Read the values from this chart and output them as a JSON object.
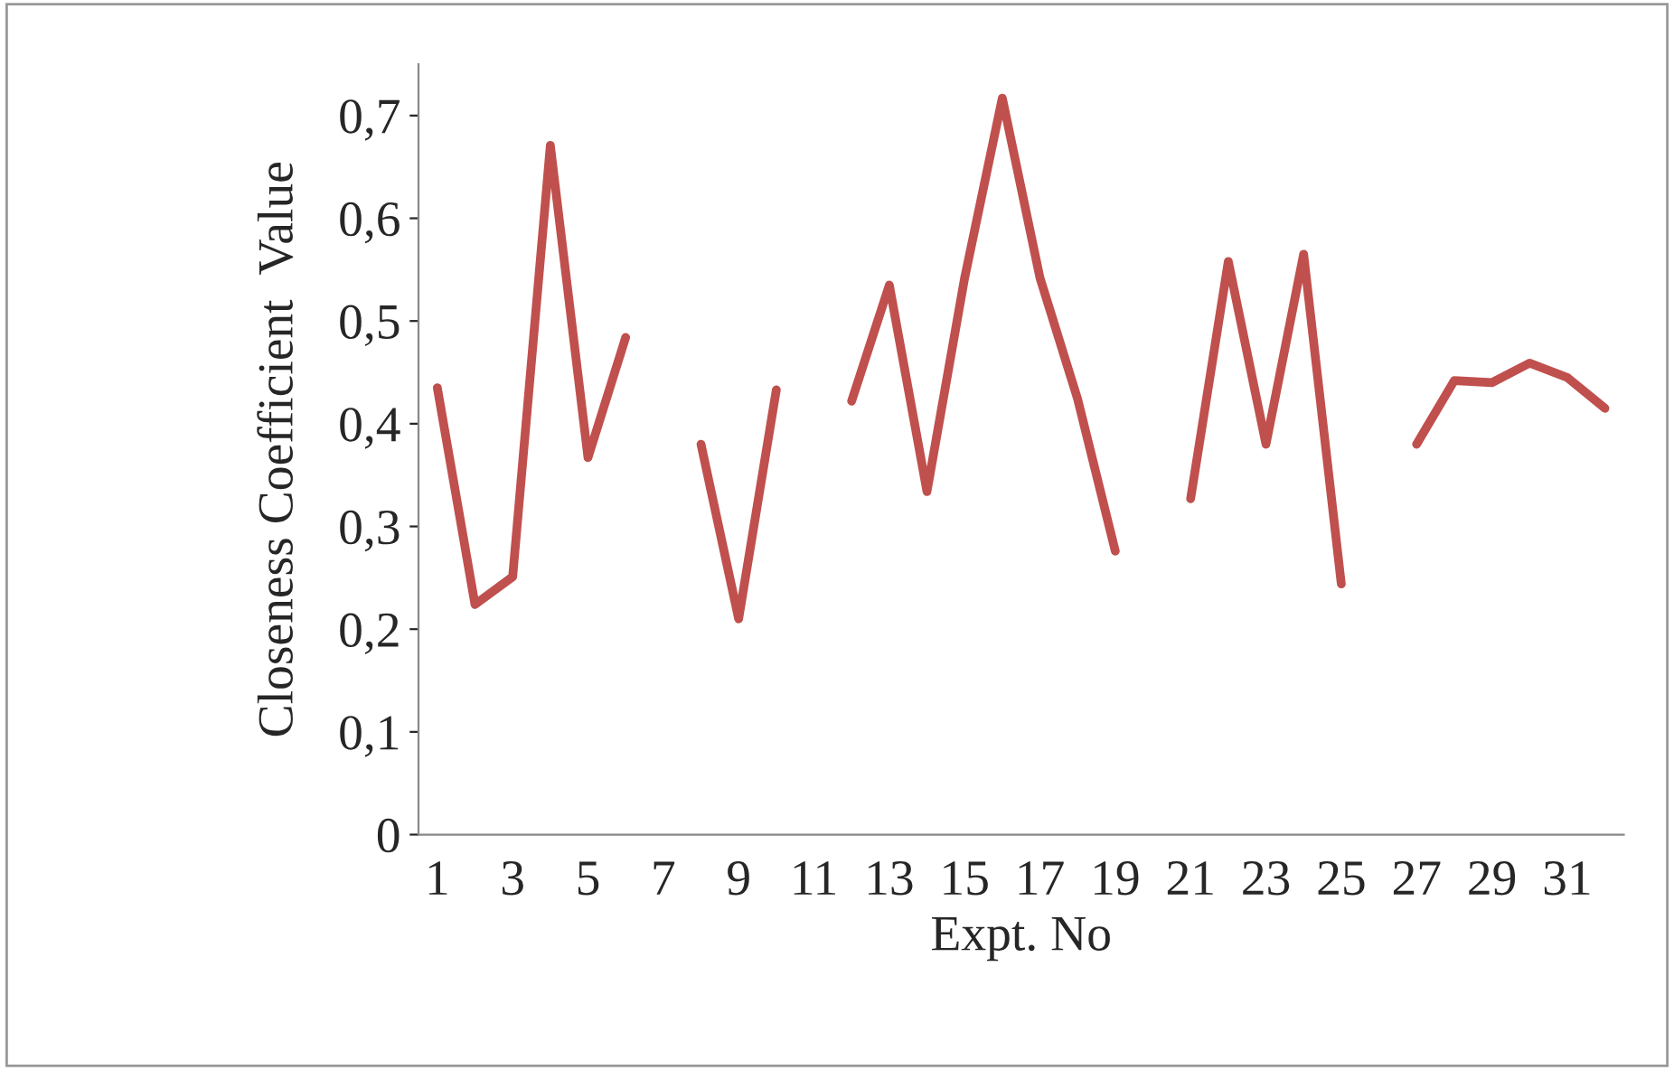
{
  "chart_data": {
    "type": "line",
    "xlabel": "Expt. No",
    "ylabel": "Closeness Coefficient  Value",
    "categories": [
      "1",
      null,
      "3",
      null,
      "5",
      null,
      "7",
      null,
      "9",
      null,
      "11",
      null,
      "13",
      null,
      "15",
      null,
      "17",
      null,
      "19",
      null,
      "21",
      null,
      "23",
      null,
      "25",
      null,
      "27",
      null,
      "29",
      null,
      "31",
      null
    ],
    "series": [
      {
        "color": "#c0504d",
        "values": [
          0.435,
          0.224,
          0.251,
          0.671,
          0.367,
          0.484,
          null,
          0.38,
          0.21,
          0.433,
          null,
          0.422,
          0.535,
          0.334,
          0.542,
          0.717,
          0.542,
          0.424,
          0.276,
          null,
          0.327,
          0.558,
          0.38,
          0.565,
          0.244,
          null,
          0.38,
          0.442,
          0.44,
          0.459,
          0.445,
          0.415
        ]
      }
    ],
    "ylim": [
      0,
      0.75
    ],
    "yticks": [
      0,
      {
        "value": 0.1,
        "label": "0,1"
      },
      {
        "value": 0.2,
        "label": "0,2"
      },
      {
        "value": 0.3,
        "label": "0,3"
      },
      {
        "value": 0.4,
        "label": "0,4"
      },
      {
        "value": 0.5,
        "label": "0,5"
      },
      {
        "value": 0.6,
        "label": "0,6"
      },
      {
        "value": 0.7,
        "label": "0,7"
      }
    ],
    "grid": false,
    "legend": false,
    "marker": "none",
    "line_style": "solid"
  }
}
